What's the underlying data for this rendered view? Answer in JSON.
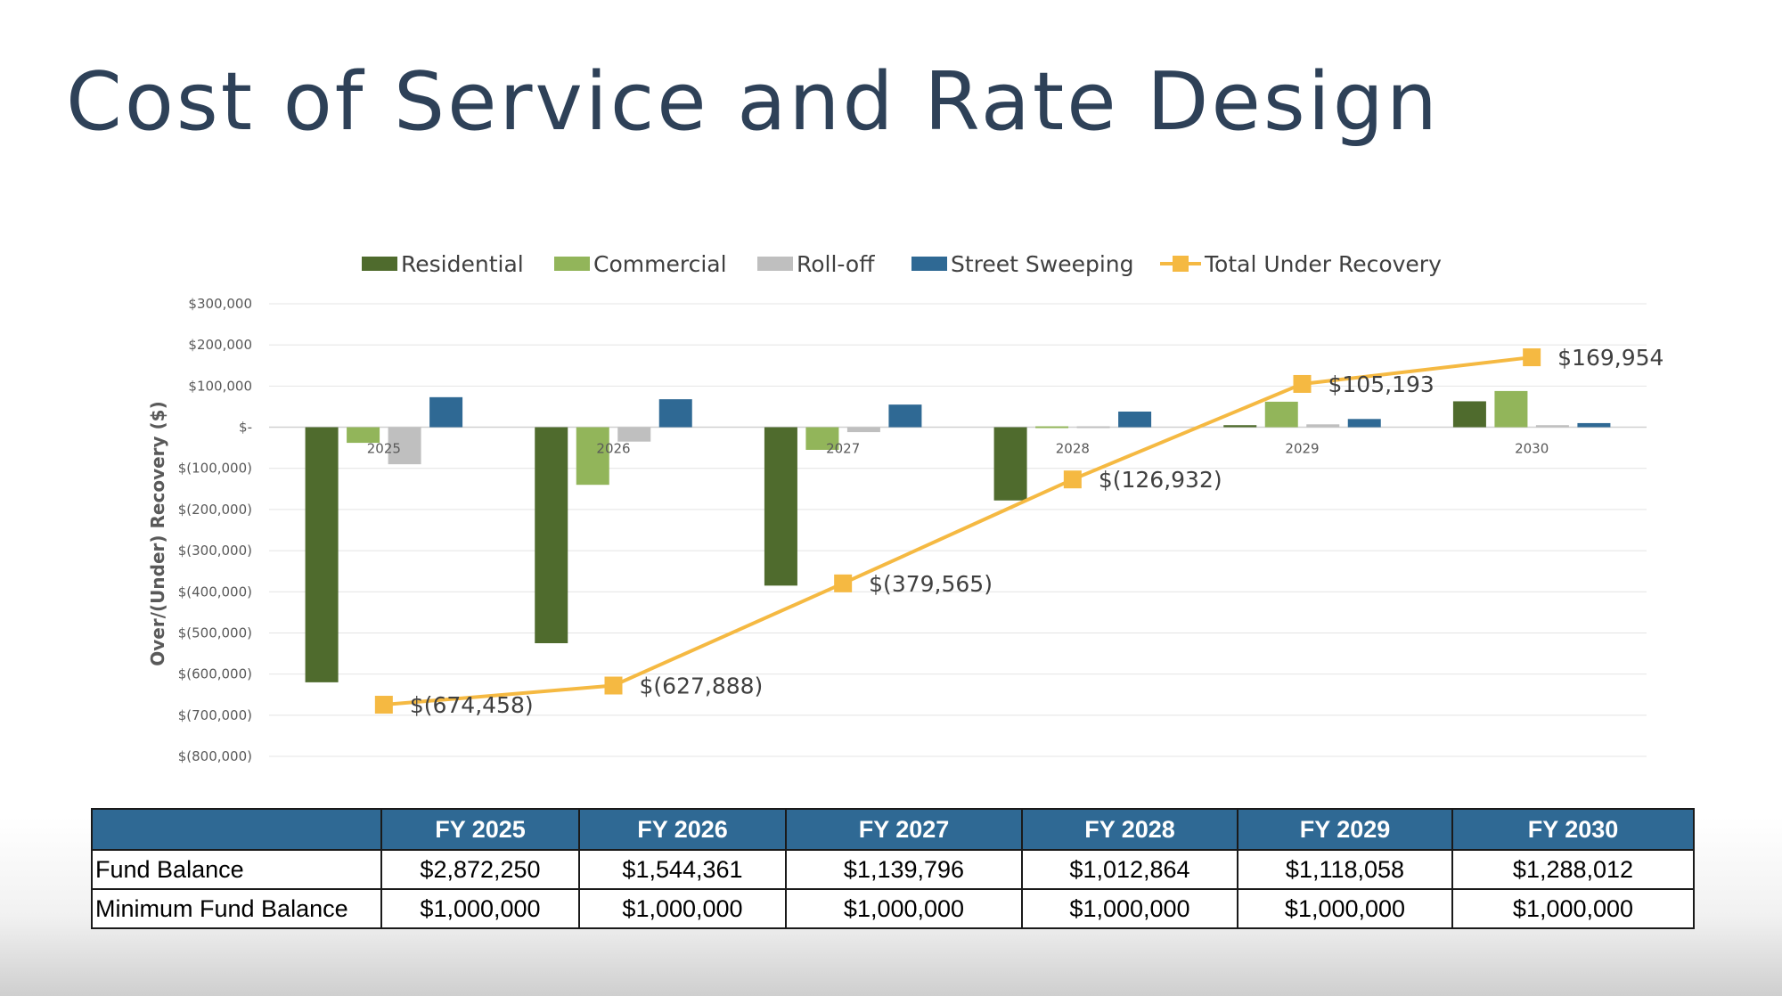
{
  "title": "Cost of Service and Rate Design",
  "chart_data": {
    "type": "bar",
    "title": "",
    "xlabel": "",
    "ylabel": "Over/(Under) Recovery ($)",
    "ylim": [
      -800000,
      300000
    ],
    "y_ticks": [
      300000,
      200000,
      100000,
      0,
      -100000,
      -200000,
      -300000,
      -400000,
      -500000,
      -600000,
      -700000,
      -800000
    ],
    "y_tick_labels": [
      "$300,000",
      "$200,000",
      "$100,000",
      "$-",
      "$(100,000)",
      "$(200,000)",
      "$(300,000)",
      "$(400,000)",
      "$(500,000)",
      "$(600,000)",
      "$(700,000)",
      "$(800,000)"
    ],
    "categories": [
      "2025",
      "2026",
      "2027",
      "2028",
      "2029",
      "2030"
    ],
    "grid": true,
    "legend_position": "top",
    "series": [
      {
        "name": "Residential",
        "type": "bar",
        "color": "#4f6b2d",
        "values": [
          -620000,
          -525000,
          -385000,
          -178000,
          5000,
          63000
        ]
      },
      {
        "name": "Commercial",
        "type": "bar",
        "color": "#92b55a",
        "values": [
          -38000,
          -140000,
          -55000,
          0,
          62000,
          88000
        ]
      },
      {
        "name": "Roll-off",
        "type": "bar",
        "color": "#bfbfbf",
        "values": [
          -90000,
          -35000,
          -12000,
          4000,
          7000,
          5000
        ]
      },
      {
        "name": "Street Sweeping",
        "type": "bar",
        "color": "#2f6994",
        "values": [
          73000,
          68000,
          55000,
          38000,
          20000,
          10000
        ]
      },
      {
        "name": "Total Under Recovery",
        "type": "line",
        "color": "#f5b942",
        "values": [
          -674458,
          -627888,
          -379565,
          -126932,
          105193,
          169954
        ],
        "labels": [
          "$(674,458)",
          "$(627,888)",
          "$(379,565)",
          "$(126,932)",
          "$105,193",
          "$169,954"
        ]
      }
    ]
  },
  "table": {
    "headers": [
      "",
      "FY 2025",
      "FY 2026",
      "FY 2027",
      "FY 2028",
      "FY 2029",
      "FY 2030"
    ],
    "rows": [
      {
        "label": "Fund Balance",
        "values": [
          "$2,872,250",
          "$1,544,361",
          "$1,139,796",
          "$1,012,864",
          "$1,118,058",
          "$1,288,012"
        ]
      },
      {
        "label": "Minimum Fund Balance",
        "values": [
          "$1,000,000",
          "$1,000,000",
          "$1,000,000",
          "$1,000,000",
          "$1,000,000",
          "$1,000,000"
        ]
      }
    ]
  }
}
